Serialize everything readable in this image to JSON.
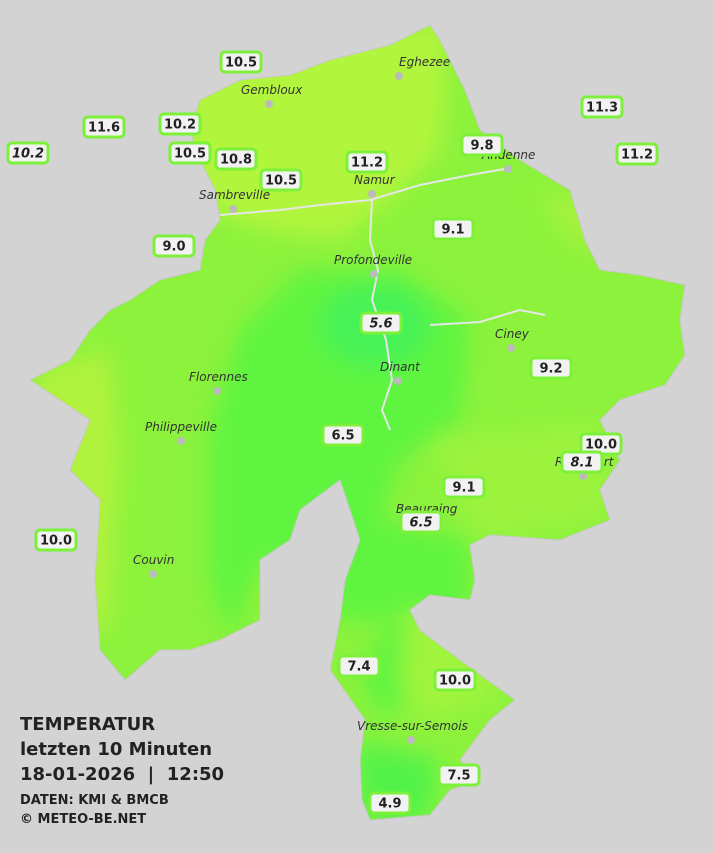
{
  "header": {
    "title": "TEMPERATUR",
    "subtitle": "letzten 10 Minuten",
    "timestamp": "18-01-2026  |  12:50",
    "source": "DATEN: KMI & BMCB",
    "copyright": "© METEO-BE.NET"
  },
  "cities": [
    {
      "label": "Eghezee"
    },
    {
      "label": "Gembloux"
    },
    {
      "label": "Andenne"
    },
    {
      "label": "Namur"
    },
    {
      "label": "Sambreville"
    },
    {
      "label": "Profondeville"
    },
    {
      "label": "Ciney"
    },
    {
      "label": "Dinant"
    },
    {
      "label": "Florennes"
    },
    {
      "label": "Philippeville"
    },
    {
      "label": "Rochefort"
    },
    {
      "label": "Beauraing"
    },
    {
      "label": "Couvin"
    },
    {
      "label": "Vresse-sur-Semois"
    }
  ],
  "stations": [
    {
      "label": "10.5"
    },
    {
      "label": "11.6"
    },
    {
      "label": "10.2",
      "italic": true
    },
    {
      "label": "10.2"
    },
    {
      "label": "10.5"
    },
    {
      "label": "10.8"
    },
    {
      "label": "10.5"
    },
    {
      "label": "11.2"
    },
    {
      "label": "9.8"
    },
    {
      "label": "11.3"
    },
    {
      "label": "11.2"
    },
    {
      "label": "9.0"
    },
    {
      "label": "9.1"
    },
    {
      "label": "9.2"
    },
    {
      "label": "6.5"
    },
    {
      "label": "10.0"
    },
    {
      "label": "9.1"
    },
    {
      "label": "10.0"
    },
    {
      "label": "7.4"
    },
    {
      "label": "10.0"
    },
    {
      "label": "7.5"
    },
    {
      "label": "4.9"
    },
    {
      "label": "5.6",
      "italic": true
    },
    {
      "label": "8.1",
      "italic": true
    },
    {
      "label": "6.5",
      "italic": true
    }
  ]
}
